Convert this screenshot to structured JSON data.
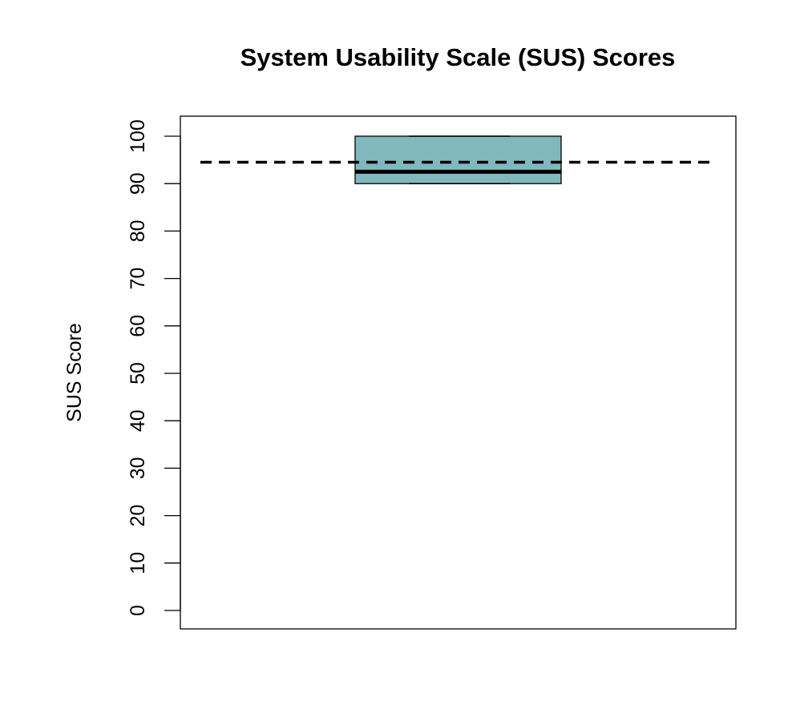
{
  "chart_data": {
    "type": "boxplot",
    "title": "System Usability Scale (SUS) Scores",
    "xlabel": "",
    "ylabel": "SUS Score",
    "ylim": [
      0,
      100
    ],
    "yticks": [
      "0",
      "10",
      "20",
      "30",
      "40",
      "50",
      "60",
      "70",
      "80",
      "90",
      "100"
    ],
    "grid": false,
    "legend": "none",
    "box": {
      "whisker_low": 90,
      "q1": 90,
      "median": 92.5,
      "q3": 100,
      "whisker_high": 100,
      "fill": "#81B8BD"
    },
    "reference_line": {
      "value": 94.5,
      "style": "dashed",
      "color": "#000000"
    }
  }
}
